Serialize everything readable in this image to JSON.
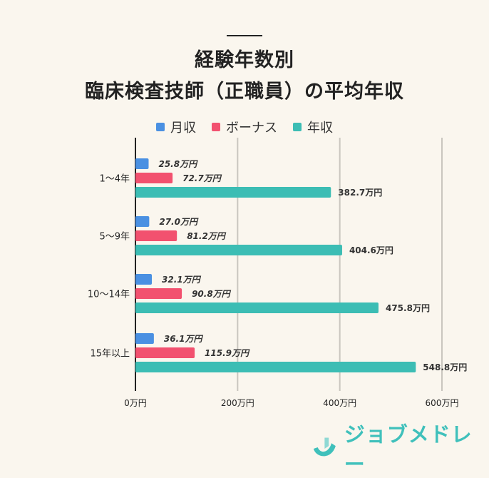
{
  "title_line1": "経験年数別",
  "title_line2": "臨床検査技師（正職員）の平均年収",
  "brand": "ジョブメドレー",
  "chart_data": {
    "type": "bar",
    "orientation": "horizontal",
    "categories": [
      "1〜4年",
      "5〜9年",
      "10〜14年",
      "15年以上"
    ],
    "series": [
      {
        "name": "月収",
        "values": [
          25.8,
          27.0,
          32.1,
          36.1
        ],
        "color": "#4a90e2"
      },
      {
        "name": "ボーナス",
        "values": [
          72.7,
          81.2,
          90.8,
          115.9
        ],
        "color": "#f2516f"
      },
      {
        "name": "年収",
        "values": [
          382.7,
          404.6,
          475.8,
          548.8
        ],
        "color": "#3cbdb4"
      }
    ],
    "unit": "万円",
    "xlim": [
      0,
      600
    ],
    "xticks": [
      "0万円",
      "200万円",
      "400万円",
      "600万円"
    ],
    "grid": true,
    "legend": "top"
  }
}
